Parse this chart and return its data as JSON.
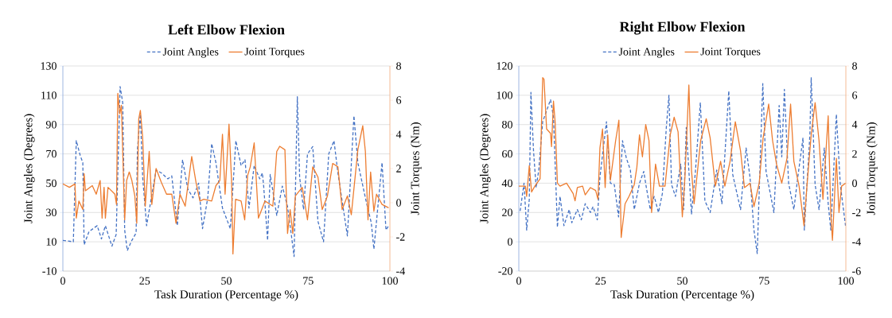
{
  "chart_data": [
    {
      "type": "line",
      "title": "Left Elbow Flexion",
      "xlabel": "Task Duration (Percentage %)",
      "ylabel": "Joint Angles (Degrees)",
      "y2label": "Joint Torques (Nm)",
      "xlim": [
        0,
        100
      ],
      "xticks": [
        0,
        25,
        50,
        75,
        100
      ],
      "ylim": [
        -10,
        130
      ],
      "yticks": [
        -10,
        10,
        30,
        50,
        70,
        90,
        110,
        130
      ],
      "y2lim": [
        -4,
        8
      ],
      "y2ticks": [
        -4,
        -2,
        0,
        2,
        4,
        6,
        8
      ],
      "grid": "y",
      "legend": "top",
      "series": [
        {
          "name": "Joint Angles",
          "color": "#4472c4",
          "line_style": "dashed",
          "x": [
            0,
            3.2,
            4.1,
            5.3,
            6.1,
            6.5,
            8.0,
            10.5,
            11.8,
            13.0,
            15.0,
            16.3,
            17.5,
            18.3,
            18.9,
            19.7,
            21.1,
            22.4,
            22.8,
            23.7,
            24.4,
            25.6,
            28.5,
            30.1,
            32.1,
            33.3,
            35.0,
            36.6,
            38.2,
            39.8,
            41.5,
            42.7,
            44.3,
            45.5,
            46.8,
            48.8,
            51.2,
            52.9,
            54.5,
            55.7,
            56.9,
            58.5,
            60.2,
            61.0,
            61.4,
            62.6,
            63.4,
            65.4,
            67.1,
            68.7,
            69.9,
            70.7,
            71.7,
            72.4,
            73.6,
            74.8,
            76.4,
            78.0,
            79.7,
            81.3,
            82.9,
            84.1,
            87.0,
            89.0,
            90.2,
            92.7,
            94.3,
            95.1,
            97.6,
            98.8,
            99.6
          ],
          "values": [
            11,
            10,
            79,
            69,
            64,
            8,
            17,
            21,
            12,
            21,
            7,
            15,
            116,
            105,
            18,
            4,
            11,
            16,
            73,
            97,
            54,
            21,
            59,
            57,
            53,
            55,
            21,
            66,
            46,
            40,
            50,
            19,
            40,
            77,
            64,
            33,
            19,
            79,
            62,
            66,
            33,
            62,
            53,
            57,
            48,
            11,
            56,
            28,
            48,
            34,
            14,
            0,
            109,
            54,
            32,
            70,
            75,
            24,
            10,
            70,
            79,
            57,
            14,
            96,
            64,
            38,
            23,
            5,
            64,
            18,
            21
          ]
        },
        {
          "name": "Joint Torques",
          "color": "#ed7d31",
          "line_style": "solid",
          "axis": "y2",
          "x": [
            0,
            2.0,
            3.7,
            4.1,
            4.9,
            6.1,
            6.5,
            6.9,
            9.0,
            10.2,
            11.4,
            12.0,
            12.6,
            13.0,
            13.8,
            15.9,
            16.4,
            16.8,
            17.4,
            17.9,
            18.9,
            19.5,
            20.3,
            21.1,
            22.0,
            22.6,
            23.2,
            23.7,
            24.4,
            25.2,
            26.4,
            27.2,
            28.5,
            30.1,
            31.7,
            33.3,
            34.6,
            35.8,
            37.4,
            39.4,
            40.7,
            41.9,
            43.1,
            45.5,
            46.8,
            48.0,
            48.8,
            49.6,
            50.8,
            51.6,
            52.0,
            52.8,
            54.5,
            55.6,
            56.5,
            57.3,
            58.5,
            59.8,
            61.8,
            64.2,
            65.4,
            66.3,
            67.9,
            68.7,
            69.5,
            70.3,
            71.1,
            73.2,
            74.8,
            76.4,
            78.0,
            79.3,
            80.9,
            82.5,
            84.1,
            85.4,
            87.0,
            88.2,
            90.2,
            91.7,
            92.5,
            93.3,
            94.1,
            95.1,
            95.9,
            97.6,
            99.6
          ],
          "values": [
            1.1,
            0.9,
            1.1,
            -0.9,
            0.1,
            -0.4,
            1.7,
            0.7,
            1.0,
            0.5,
            1.3,
            -0.9,
            0.9,
            -0.9,
            0.9,
            0.5,
            -0.1,
            6.4,
            5.2,
            5.7,
            -1.0,
            1.3,
            1.8,
            1.3,
            0.4,
            -1.2,
            4.9,
            5.4,
            3.8,
            -0.2,
            3.0,
            -0.1,
            2.0,
            1.2,
            0.5,
            0.5,
            -1.2,
            0.5,
            -0.2,
            2.7,
            1.2,
            0.1,
            0.2,
            0.1,
            1.0,
            1.3,
            4.0,
            0.5,
            4.6,
            1.2,
            -3.0,
            0.2,
            0.1,
            -1.0,
            1.6,
            2.1,
            3.5,
            -0.9,
            0.1,
            -0.2,
            3.0,
            3.3,
            3.1,
            -1.8,
            -0.4,
            -1.8,
            0.4,
            0.9,
            -1.0,
            2.1,
            1.5,
            -0.4,
            0.4,
            2.3,
            2.1,
            -0.4,
            0.4,
            -0.7,
            3.1,
            4.5,
            3.0,
            -1.0,
            1.8,
            -0.5,
            0.5,
            -0.1,
            -0.3
          ]
        }
      ]
    },
    {
      "type": "line",
      "title": "Right Elbow Flexion",
      "xlabel": "Task Duration (Percentage %)",
      "ylabel": "Joint Angles (Degrees)",
      "y2label": "Joint Torques (Nm)",
      "xlim": [
        0,
        100
      ],
      "xticks": [
        0,
        25,
        50,
        75,
        100
      ],
      "ylim": [
        -20,
        120
      ],
      "yticks": [
        -20,
        0,
        20,
        40,
        60,
        80,
        100,
        120
      ],
      "y2lim": [
        -6,
        8
      ],
      "y2ticks": [
        -6,
        -4,
        -2,
        0,
        2,
        4,
        6,
        8
      ],
      "grid": "y",
      "legend": "top",
      "series": [
        {
          "name": "Joint Angles",
          "color": "#4472c4",
          "line_style": "dashed",
          "x": [
            0.4,
            1.6,
            2.4,
            3.2,
            3.7,
            4.5,
            5.3,
            6.1,
            7.3,
            9.7,
            10.6,
            11.8,
            12.6,
            13.8,
            15.4,
            16.2,
            17.9,
            19.1,
            20.3,
            21.9,
            22.7,
            24.0,
            24.8,
            26.8,
            28.0,
            29.2,
            30.5,
            31.7,
            32.9,
            34.1,
            35.3,
            36.9,
            38.2,
            39.0,
            40.2,
            41.4,
            42.7,
            43.9,
            45.1,
            45.9,
            46.7,
            47.9,
            49.5,
            50.4,
            51.2,
            52.8,
            54.0,
            55.5,
            56.9,
            58.5,
            60.5,
            62.1,
            64.2,
            65.4,
            67.8,
            69.5,
            70.7,
            71.9,
            72.9,
            73.9,
            74.6,
            75.6,
            78.0,
            79.6,
            80.4,
            81.2,
            82.5,
            84.1,
            85.3,
            86.9,
            87.3,
            89.0,
            89.4,
            90.6,
            91.8,
            93.4,
            94.6,
            95.4,
            97.1,
            98.3,
            99.9
          ],
          "values": [
            21,
            40,
            8,
            29,
            102,
            62,
            37,
            49,
            82,
            97,
            85,
            10,
            31,
            11,
            22,
            13,
            22,
            15,
            26,
            20,
            24,
            15,
            44,
            82,
            40,
            39,
            17,
            69,
            57,
            49,
            22,
            40,
            48,
            37,
            22,
            31,
            20,
            33,
            78,
            100,
            39,
            31,
            53,
            22,
            78,
            19,
            48,
            95,
            28,
            20,
            49,
            26,
            103,
            46,
            22,
            64,
            44,
            8,
            -8,
            62,
            108,
            48,
            20,
            93,
            58,
            104,
            40,
            22,
            44,
            71,
            8,
            73,
            112,
            39,
            22,
            64,
            26,
            8,
            87,
            39,
            11
          ]
        },
        {
          "name": "Joint Torques",
          "color": "#ed7d31",
          "line_style": "solid",
          "axis": "y2",
          "x": [
            0,
            2.0,
            2.4,
            3.2,
            3.9,
            4.9,
            6.5,
            7.3,
            7.7,
            8.5,
            9.7,
            10.0,
            10.6,
            11.1,
            11.8,
            12.6,
            14.6,
            16.6,
            17.2,
            17.9,
            19.5,
            20.3,
            21.9,
            23.5,
            24.2,
            24.8,
            25.6,
            26.4,
            27.2,
            28.0,
            29.6,
            30.6,
            31.3,
            32.5,
            33.7,
            35.3,
            36.1,
            36.9,
            37.8,
            38.8,
            39.8,
            40.6,
            41.8,
            43.0,
            44.7,
            46.3,
            47.5,
            48.7,
            50.0,
            50.8,
            52.0,
            52.8,
            53.6,
            55.6,
            57.3,
            58.5,
            60.1,
            61.7,
            63.0,
            64.6,
            66.2,
            67.8,
            69.0,
            70.7,
            71.9,
            73.5,
            74.7,
            76.4,
            77.6,
            78.8,
            80.4,
            82.0,
            83.1,
            84.1,
            85.7,
            87.2,
            88.1,
            89.4,
            90.6,
            91.8,
            93.0,
            94.6,
            95.4,
            95.9,
            97.1,
            97.9,
            98.7,
            99.9
          ],
          "values": [
            -0.2,
            -0.2,
            -0.9,
            1.2,
            -0.6,
            -0.2,
            0.3,
            7.2,
            7.1,
            3.7,
            3.4,
            2.5,
            5.6,
            4.2,
            0.0,
            -0.2,
            0.0,
            -0.7,
            -1.2,
            -0.3,
            -0.2,
            -0.8,
            -0.3,
            -0.5,
            -1.1,
            2.4,
            3.7,
            -0.3,
            3.3,
            0.2,
            2.9,
            4.3,
            -3.7,
            -1.4,
            -0.9,
            -0.1,
            1.1,
            3.3,
            1.8,
            4.0,
            2.9,
            -2.0,
            1.3,
            -0.2,
            -0.2,
            3.3,
            4.5,
            3.5,
            -2.3,
            0.4,
            6.7,
            0.9,
            -1.4,
            2.9,
            4.4,
            3.1,
            -0.2,
            1.5,
            -0.2,
            1.5,
            4.2,
            2.2,
            -0.3,
            0.0,
            -1.6,
            0.0,
            3.1,
            5.4,
            2.9,
            1.3,
            0.0,
            1.7,
            5.4,
            1.5,
            -0.2,
            -2.9,
            -0.2,
            3.3,
            5.5,
            2.9,
            -1.1,
            4.6,
            -2.1,
            -3.9,
            1.7,
            -2.0,
            -0.2,
            0.0
          ]
        }
      ]
    }
  ]
}
